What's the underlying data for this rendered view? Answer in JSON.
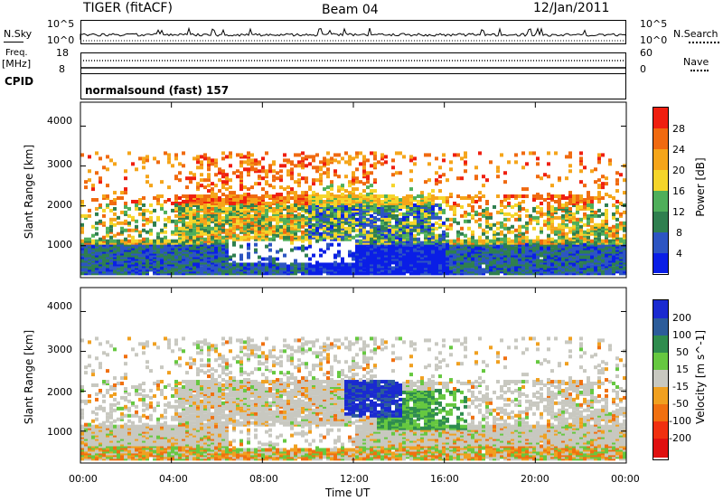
{
  "header": {
    "radar": "TIGER (fitACF)",
    "beam": "Beam 04",
    "date": "12/Jan/2011"
  },
  "top_panels": {
    "nsky_label": "N.Sky",
    "nsky_ticks": [
      "10^5",
      "10^0"
    ],
    "nsearch_label": "N.Search",
    "nsearch_ticks": [
      "10^5",
      "10^0"
    ],
    "freq_label_1": "Freq.",
    "freq_label_2": "[MHz]",
    "freq_ticks": [
      "18",
      "8"
    ],
    "nave_label": "Nave",
    "nave_ticks": [
      "60",
      "0"
    ],
    "cpid_label": "CPID",
    "cpid_text": "normalsound (fast) 157"
  },
  "chart_data": [
    {
      "type": "heatmap",
      "title": "Power",
      "xlabel": "",
      "ylabel": "Slant Range [km]",
      "x_ticks": [
        "00:00",
        "04:00",
        "08:00",
        "12:00",
        "16:00",
        "20:00",
        "00:00"
      ],
      "y_ticks": [
        "1000",
        "2000",
        "3000",
        "4000"
      ],
      "ylim": [
        200,
        4600
      ],
      "colorbar": {
        "label": "Power [dB]",
        "ticks": [
          "4",
          "8",
          "12",
          "16",
          "20",
          "24",
          "28"
        ],
        "colors": [
          "#0a1ee6",
          "#2d55c2",
          "#2f7f4f",
          "#4faf5a",
          "#f5d52a",
          "#f5a51a",
          "#f06a10",
          "#ef1f10"
        ]
      }
    },
    {
      "type": "heatmap",
      "title": "Velocity",
      "xlabel": "Time UT",
      "ylabel": "Slant Range [km]",
      "x_ticks": [
        "00:00",
        "04:00",
        "08:00",
        "12:00",
        "16:00",
        "20:00",
        "00:00"
      ],
      "y_ticks": [
        "1000",
        "2000",
        "3000",
        "4000"
      ],
      "ylim": [
        200,
        4600
      ],
      "colorbar": {
        "label": "Velocity [m s^-1]",
        "ticks": [
          "200",
          "100",
          "50",
          "15",
          "-15",
          "-50",
          "-100",
          "-200"
        ],
        "colors": [
          "#1a2ad0",
          "#2c5c9a",
          "#2f8c4e",
          "#66c840",
          "#c8c8c0",
          "#f0a020",
          "#f07010",
          "#f03010",
          "#e01010"
        ]
      }
    }
  ]
}
